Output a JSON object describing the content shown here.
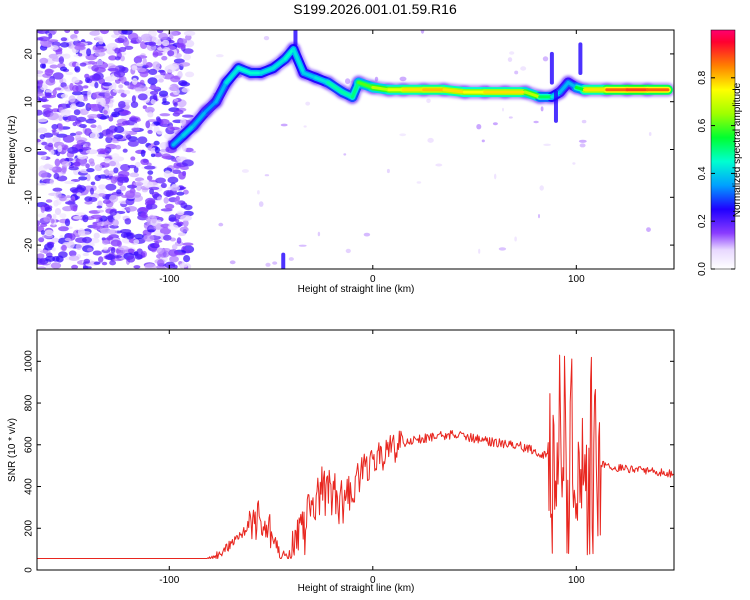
{
  "title": "S199.2026.001.01.59.R16",
  "chart_data": [
    {
      "type": "heatmap",
      "xlabel": "Height of straight line (km)",
      "ylabel": "Frequency (Hz)",
      "xlim": [
        -165,
        148
      ],
      "ylim": [
        -25,
        25
      ],
      "xticks": [
        "-100",
        "0",
        "100"
      ],
      "yticks": [
        "20",
        "10",
        "0",
        "-10",
        "-20"
      ],
      "colorbar": {
        "label": "Normalized spectral amplitude",
        "range": [
          0,
          1
        ],
        "ticks": [
          "0.0",
          "0.2",
          "0.4",
          "0.6",
          "0.8"
        ]
      },
      "ridge": [
        {
          "x": -98,
          "y": 1,
          "a": 0.35
        },
        {
          "x": -93,
          "y": 3,
          "a": 0.4
        },
        {
          "x": -88,
          "y": 5,
          "a": 0.4
        },
        {
          "x": -82,
          "y": 8,
          "a": 0.35
        },
        {
          "x": -77,
          "y": 10,
          "a": 0.35
        },
        {
          "x": -72,
          "y": 14,
          "a": 0.4
        },
        {
          "x": -66,
          "y": 17,
          "a": 0.45
        },
        {
          "x": -60,
          "y": 16,
          "a": 0.45
        },
        {
          "x": -55,
          "y": 16,
          "a": 0.45
        },
        {
          "x": -49,
          "y": 17,
          "a": 0.4
        },
        {
          "x": -43,
          "y": 19,
          "a": 0.45
        },
        {
          "x": -39,
          "y": 21,
          "a": 0.45
        },
        {
          "x": -34,
          "y": 16,
          "a": 0.4
        },
        {
          "x": -28,
          "y": 15,
          "a": 0.4
        },
        {
          "x": -22,
          "y": 14,
          "a": 0.45
        },
        {
          "x": -15,
          "y": 12,
          "a": 0.5
        },
        {
          "x": -10,
          "y": 11,
          "a": 0.45
        },
        {
          "x": -7,
          "y": 14,
          "a": 0.55
        },
        {
          "x": 0,
          "y": 13,
          "a": 0.65
        },
        {
          "x": 8,
          "y": 12.5,
          "a": 0.7
        },
        {
          "x": 15,
          "y": 12.5,
          "a": 0.75
        },
        {
          "x": 25,
          "y": 12.5,
          "a": 0.8
        },
        {
          "x": 35,
          "y": 12.5,
          "a": 0.8
        },
        {
          "x": 45,
          "y": 12,
          "a": 0.75
        },
        {
          "x": 55,
          "y": 12,
          "a": 0.75
        },
        {
          "x": 65,
          "y": 12,
          "a": 0.8
        },
        {
          "x": 75,
          "y": 12,
          "a": 0.75
        },
        {
          "x": 82,
          "y": 11,
          "a": 0.6
        },
        {
          "x": 88,
          "y": 11,
          "a": 0.45
        },
        {
          "x": 92,
          "y": 12,
          "a": 0.4
        },
        {
          "x": 96,
          "y": 14,
          "a": 0.35
        },
        {
          "x": 100,
          "y": 13,
          "a": 0.4
        },
        {
          "x": 104,
          "y": 12.5,
          "a": 0.7
        },
        {
          "x": 115,
          "y": 12.5,
          "a": 0.85
        },
        {
          "x": 125,
          "y": 12.5,
          "a": 0.9
        },
        {
          "x": 135,
          "y": 12.5,
          "a": 0.9
        },
        {
          "x": 145,
          "y": 12.5,
          "a": 0.85
        }
      ]
    },
    {
      "type": "line",
      "xlabel": "Height of straight line (km)",
      "ylabel": "SNR (10 * v/v)",
      "xlim": [
        -165,
        148
      ],
      "ylim": [
        0,
        1150
      ],
      "xticks": [
        "-100",
        "0",
        "100"
      ],
      "yticks": [
        "0",
        "200",
        "400",
        "600",
        "800",
        "1000"
      ],
      "color": "#e8261f",
      "envelope": {
        "x": [
          -165,
          -90,
          -80,
          -70,
          -60,
          -55,
          -50,
          -45,
          -40,
          -35,
          -30,
          -25,
          -20,
          -15,
          -10,
          -5,
          0,
          10,
          20,
          30,
          40,
          50,
          60,
          70,
          80,
          88,
          92,
          96,
          100,
          104,
          108,
          112,
          120,
          130,
          140,
          148
        ],
        "y": [
          25,
          25,
          40,
          120,
          220,
          250,
          170,
          60,
          60,
          160,
          280,
          370,
          390,
          330,
          420,
          470,
          520,
          580,
          620,
          640,
          650,
          630,
          610,
          600,
          570,
          540,
          550,
          540,
          520,
          530,
          540,
          510,
          490,
          480,
          470,
          460
        ]
      }
    }
  ]
}
